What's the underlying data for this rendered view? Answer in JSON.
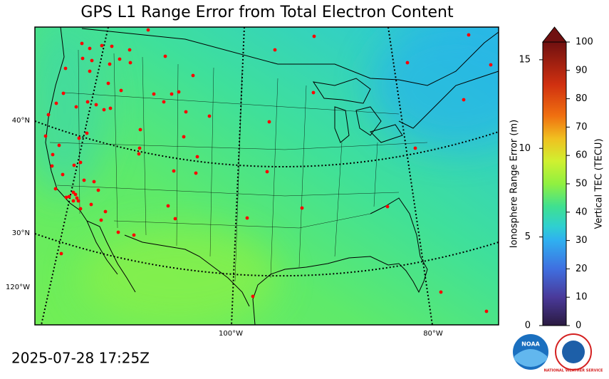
{
  "title": "GPS L1 Range Error from Total Electron Content",
  "timestamp": "2025-07-28 17:25Z",
  "map": {
    "lat_labels": [
      "40°N",
      "30°N",
      "120°W"
    ],
    "lon_labels": [
      "100°W",
      "80°W"
    ]
  },
  "colorbar": {
    "left_label": "Ionosphere Range Error (m)",
    "right_label": "Vertical TEC (TECU)",
    "left_lim": [
      0,
      16
    ],
    "left_ticks": [
      0,
      5,
      10,
      15
    ],
    "right_lim": [
      0,
      100
    ],
    "right_ticks": [
      0,
      10,
      20,
      30,
      40,
      50,
      60,
      70,
      80,
      90,
      100
    ]
  },
  "logos": {
    "noaa": "NOAA",
    "nws": "NATIONAL WEATHER SERVICE"
  }
}
